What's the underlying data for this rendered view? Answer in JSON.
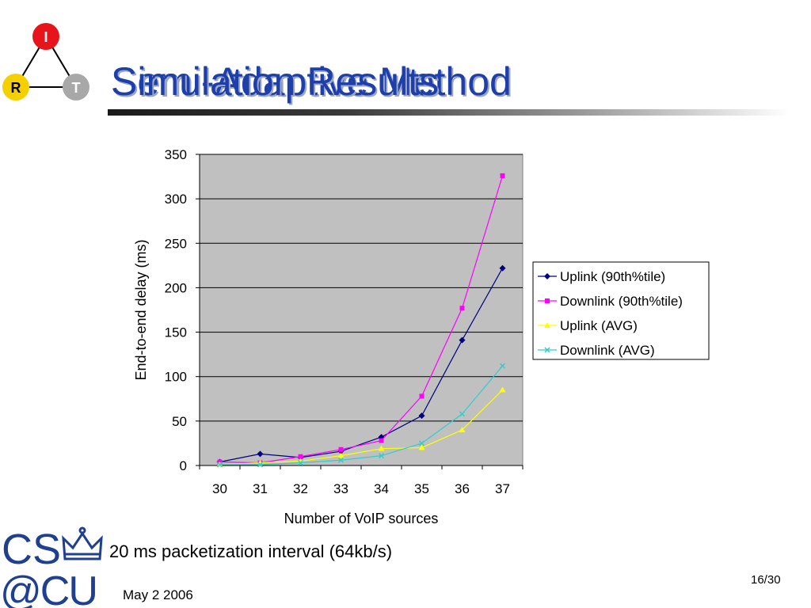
{
  "slide": {
    "title_back": "Semi-Adaptive Method",
    "title_front": "Simulation Results",
    "caption": "20 ms packetization interval (64kb/s)",
    "date": "May 2 2006",
    "page": "16/30",
    "logo_irt_letters": [
      "I",
      "R",
      "T"
    ],
    "logo_cu_text": [
      "CS",
      "@CU"
    ]
  },
  "colors": {
    "title": "#1f3fa8",
    "plot_bg": "#c0c0c0",
    "uplink_90": "#000080",
    "downlink_90": "#ff00ff",
    "uplink_avg": "#ffff00",
    "downlink_avg": "#33cccc"
  },
  "chart_data": {
    "type": "line",
    "title": "",
    "xlabel": "Number of VoIP sources",
    "ylabel": "End-to-end delay (ms)",
    "categories": [
      "30",
      "31",
      "32",
      "33",
      "34",
      "35",
      "36",
      "37"
    ],
    "ylim": [
      0,
      350
    ],
    "yticks": [
      0,
      50,
      100,
      150,
      200,
      250,
      300,
      350
    ],
    "grid": true,
    "legend_position": "right",
    "series": [
      {
        "name": "Uplink (90th%tile)",
        "color": "#000080",
        "marker": "diamond",
        "values": [
          4,
          13,
          9,
          16,
          32,
          56,
          141,
          222
        ]
      },
      {
        "name": "Downlink (90th%tile)",
        "color": "#ff00ff",
        "marker": "square",
        "values": [
          4,
          3,
          10,
          18,
          28,
          78,
          177,
          326
        ]
      },
      {
        "name": "Uplink (AVG)",
        "color": "#ffff00",
        "marker": "triangle",
        "values": [
          1,
          3,
          5,
          11,
          19,
          20,
          40,
          85
        ]
      },
      {
        "name": "Downlink (AVG)",
        "color": "#33cccc",
        "marker": "x",
        "values": [
          1,
          1,
          3,
          6,
          11,
          25,
          58,
          112
        ]
      }
    ]
  }
}
